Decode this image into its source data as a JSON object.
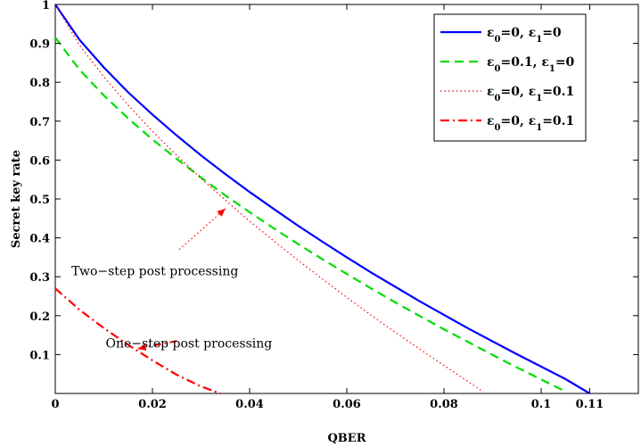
{
  "chart_data": {
    "type": "line",
    "xlabel": "QBER",
    "ylabel": "Secret key rate",
    "xlim": [
      0,
      0.12
    ],
    "ylim": [
      0,
      1
    ],
    "xticks": [
      0,
      0.02,
      0.04,
      0.06,
      0.08,
      0.1,
      0.11
    ],
    "xtick_labels": [
      "0",
      "0.02",
      "0.04",
      "0.06",
      "0.08",
      "0.1",
      "0.11"
    ],
    "yticks": [
      0.1,
      0.2,
      0.3,
      0.4,
      0.5,
      0.6,
      0.7,
      0.8,
      0.9,
      1
    ],
    "ytick_labels": [
      "0.1",
      "0.2",
      "0.3",
      "0.4",
      "0.5",
      "0.6",
      "0.7",
      "0.8",
      "0.9",
      "1"
    ],
    "grid": false,
    "legend_position": "top-right",
    "series": [
      {
        "name": "ε0=0, ε1=0",
        "legend": {
          "a": "ε",
          "s1": "0",
          "b": "=0, ε",
          "s2": "1",
          "c": "=0"
        },
        "color": "#0000ff",
        "style": "solid",
        "x": [
          0,
          0.005,
          0.01,
          0.015,
          0.02,
          0.025,
          0.03,
          0.035,
          0.04,
          0.045,
          0.05,
          0.055,
          0.06,
          0.065,
          0.07,
          0.075,
          0.08,
          0.085,
          0.09,
          0.095,
          0.1,
          0.105,
          0.11
        ],
        "y": [
          1.0,
          0.909,
          0.838,
          0.774,
          0.717,
          0.663,
          0.612,
          0.564,
          0.518,
          0.474,
          0.431,
          0.39,
          0.35,
          0.311,
          0.274,
          0.237,
          0.202,
          0.167,
          0.134,
          0.101,
          0.069,
          0.037,
          0.0
        ]
      },
      {
        "name": "ε0=0.1, ε1=0",
        "legend": {
          "a": "ε",
          "s1": "0",
          "b": "=0.1, ε",
          "s2": "1",
          "c": "=0"
        },
        "color": "#00dd00",
        "style": "dashed",
        "x": [
          0,
          0.005,
          0.01,
          0.015,
          0.02,
          0.025,
          0.03,
          0.035,
          0.04,
          0.045,
          0.05,
          0.055,
          0.06,
          0.065,
          0.07,
          0.075,
          0.08,
          0.085,
          0.09,
          0.095,
          0.1,
          0.105
        ],
        "y": [
          0.915,
          0.832,
          0.766,
          0.707,
          0.653,
          0.603,
          0.555,
          0.509,
          0.466,
          0.424,
          0.384,
          0.345,
          0.307,
          0.27,
          0.234,
          0.199,
          0.165,
          0.132,
          0.099,
          0.067,
          0.036,
          0.005
        ]
      },
      {
        "name": "ε0=0, ε1=0.1",
        "legend": {
          "a": "ε",
          "s1": "0",
          "b": "=0, ε",
          "s2": "1",
          "c": "=0.1"
        },
        "color": "#ff0000",
        "style": "dotted",
        "x": [
          0,
          0.005,
          0.01,
          0.015,
          0.02,
          0.025,
          0.03,
          0.035,
          0.04,
          0.045,
          0.05,
          0.055,
          0.06,
          0.065,
          0.07,
          0.075,
          0.08,
          0.085,
          0.088
        ],
        "y": [
          1.0,
          0.895,
          0.814,
          0.741,
          0.674,
          0.612,
          0.553,
          0.497,
          0.443,
          0.392,
          0.342,
          0.294,
          0.247,
          0.201,
          0.157,
          0.114,
          0.072,
          0.03,
          0.005
        ]
      },
      {
        "name": "ε0=0, ε1=0.1",
        "legend": {
          "a": "ε",
          "s1": "0",
          "b": "=0, ε",
          "s2": "1",
          "c": "=0.1"
        },
        "color": "#ff0000",
        "style": "dashdot",
        "x": [
          0,
          0.005,
          0.01,
          0.015,
          0.02,
          0.025,
          0.03,
          0.034
        ],
        "y": [
          0.27,
          0.215,
          0.168,
          0.125,
          0.085,
          0.048,
          0.018,
          0.0
        ]
      }
    ],
    "annotations": [
      {
        "text": "Two−step post processing",
        "x": 0.0205,
        "y": 0.315,
        "arrow_from": [
          0.0255,
          0.37
        ],
        "arrow_to": [
          0.035,
          0.475
        ]
      },
      {
        "text": "One−step post processing",
        "x": 0.0275,
        "y": 0.13,
        "arrow_from": [
          0.025,
          0.135
        ],
        "arrow_to": [
          0.017,
          0.115
        ]
      }
    ]
  }
}
